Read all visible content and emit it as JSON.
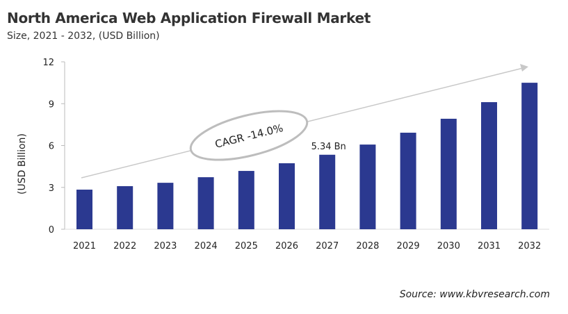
{
  "chart_data": {
    "type": "bar",
    "title": "North America Web Application Firewall Market",
    "subtitle": "Size, 2021 - 2032, (USD Billion)",
    "ylabel": "(USD Billion)",
    "xlabel": "",
    "ylim": [
      0,
      12
    ],
    "yticks": [
      0,
      3,
      6,
      9,
      12
    ],
    "categories": [
      "2021",
      "2022",
      "2023",
      "2024",
      "2025",
      "2026",
      "2027",
      "2028",
      "2029",
      "2030",
      "2031",
      "2032"
    ],
    "values": [
      2.84,
      3.09,
      3.33,
      3.73,
      4.18,
      4.73,
      5.34,
      6.07,
      6.92,
      7.92,
      9.11,
      10.5
    ],
    "data_label": {
      "category": "2027",
      "text": "5.34 Bn"
    },
    "annotation": "CAGR -14.0%",
    "bar_color": "#2b3990",
    "grid": false,
    "legend": "none"
  },
  "source": "Source: www.kbvresearch.com"
}
